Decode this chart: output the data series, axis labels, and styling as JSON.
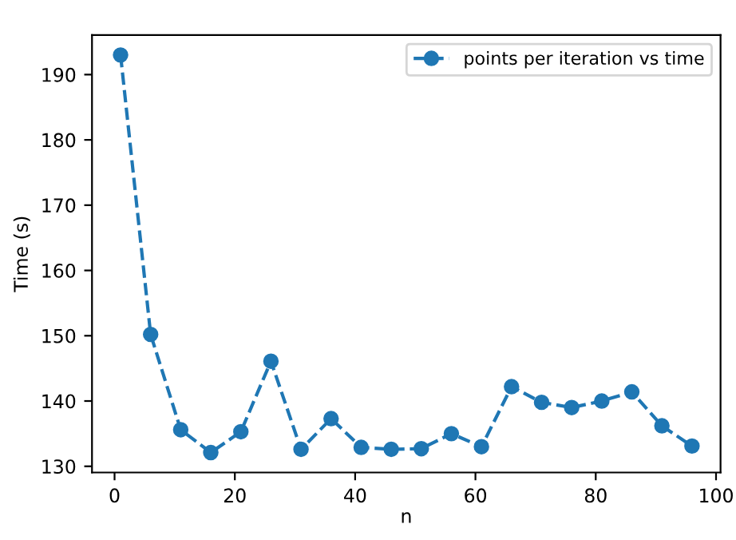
{
  "chart_data": {
    "type": "line",
    "xlabel": "n",
    "ylabel": "Time (s)",
    "x": [
      1,
      6,
      11,
      16,
      21,
      26,
      31,
      36,
      41,
      46,
      51,
      56,
      61,
      66,
      71,
      76,
      81,
      86,
      91,
      96
    ],
    "series": [
      {
        "name": "points per iteration vs time",
        "color": "#1f77b4",
        "values": [
          193.0,
          150.2,
          135.6,
          132.1,
          135.3,
          146.1,
          132.6,
          137.3,
          132.9,
          132.6,
          132.7,
          135.0,
          133.0,
          142.2,
          139.8,
          139.0,
          140.0,
          141.4,
          136.2,
          133.1
        ]
      }
    ],
    "xlim": [
      -3.75,
      100.75
    ],
    "ylim": [
      129.05,
      196.05
    ],
    "xticks": [
      0,
      20,
      40,
      60,
      80,
      100
    ],
    "yticks": [
      130,
      140,
      150,
      160,
      170,
      180,
      190
    ],
    "marker": "circle",
    "line_style": "dashed",
    "legend": "top right",
    "grid": false
  }
}
